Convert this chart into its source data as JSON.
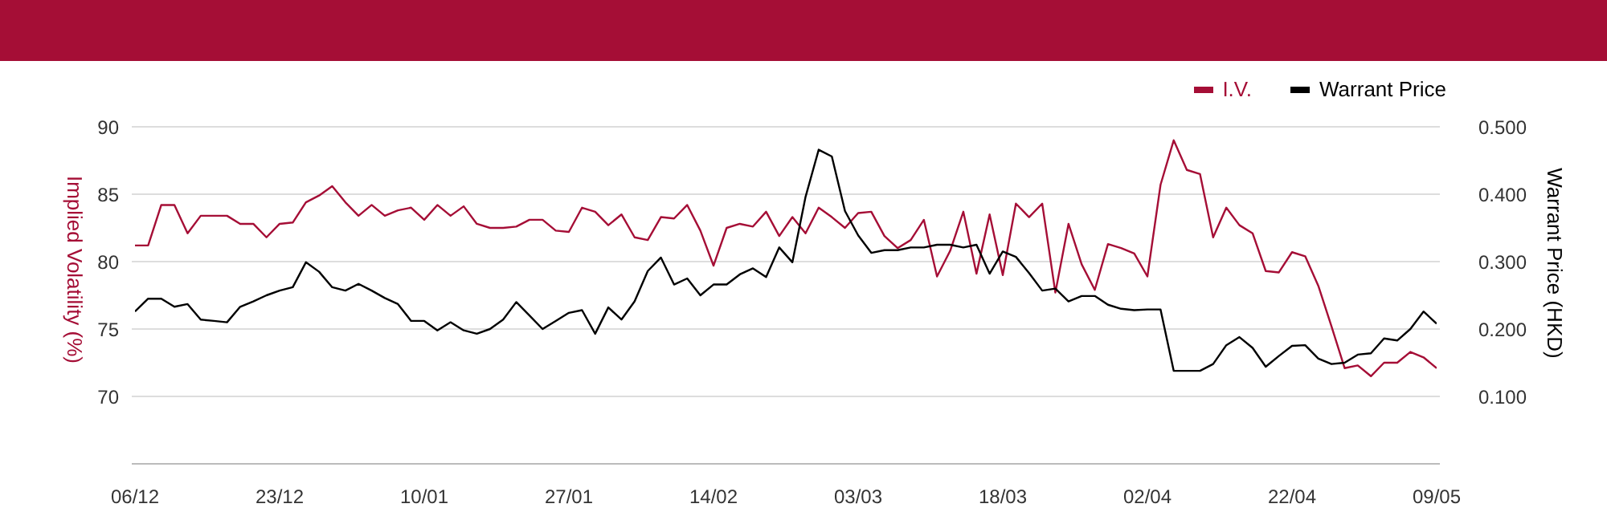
{
  "chart_data": {
    "type": "line",
    "ylabel": "Implied Volatility (%)",
    "y2label": "Warrant Price (HKD)",
    "categories": [
      "06/12",
      null,
      null,
      null,
      null,
      null,
      null,
      null,
      null,
      null,
      null,
      "23/12",
      null,
      null,
      null,
      null,
      null,
      null,
      null,
      null,
      null,
      null,
      "10/01",
      null,
      null,
      null,
      null,
      null,
      null,
      null,
      null,
      null,
      null,
      "27/01",
      null,
      null,
      null,
      null,
      null,
      null,
      null,
      null,
      null,
      null,
      "14/02",
      null,
      null,
      null,
      null,
      null,
      null,
      null,
      null,
      null,
      null,
      "03/03",
      null,
      null,
      null,
      null,
      null,
      null,
      null,
      null,
      null,
      null,
      "18/03",
      null,
      null,
      null,
      null,
      null,
      null,
      null,
      null,
      null,
      null,
      "02/04",
      null,
      null,
      null,
      null,
      null,
      null,
      null,
      null,
      null,
      null,
      "22/04",
      null,
      null,
      null,
      null,
      null,
      null,
      null,
      null,
      null,
      null,
      "09/05"
    ],
    "series": [
      {
        "name": "I.V.",
        "color": "#a50e36",
        "values": [
          81.2,
          81.2,
          84.2,
          84.2,
          82.1,
          83.4,
          83.4,
          83.4,
          82.8,
          82.8,
          81.8,
          82.8,
          82.9,
          84.4,
          84.9,
          85.6,
          84.4,
          83.4,
          84.2,
          83.4,
          83.8,
          84.0,
          83.1,
          84.2,
          83.4,
          84.1,
          82.8,
          82.5,
          82.5,
          82.6,
          83.1,
          83.1,
          82.3,
          82.2,
          84.0,
          83.7,
          82.7,
          83.5,
          81.8,
          81.6,
          83.3,
          83.2,
          84.2,
          82.3,
          79.7,
          82.5,
          82.8,
          82.6,
          83.7,
          81.9,
          83.3,
          82.1,
          84.0,
          83.3,
          82.5,
          83.6,
          83.7,
          81.9,
          81.0,
          81.6,
          83.1,
          78.9,
          80.8,
          83.7,
          79.1,
          83.5,
          79.0,
          84.3,
          83.3,
          84.3,
          77.7,
          82.8,
          79.8,
          77.9,
          81.3,
          81.0,
          80.6,
          78.9,
          85.7,
          89.0,
          86.8,
          86.5,
          81.8,
          84.0,
          82.7,
          82.1,
          79.3,
          79.2,
          80.7,
          80.4,
          78.2,
          75.2,
          72.1,
          72.3,
          71.5,
          72.5,
          72.5,
          73.3,
          72.9,
          72.1
        ]
      },
      {
        "name": "Warrant Price",
        "color": "#000000",
        "axis": "y2",
        "values": [
          0.226,
          0.245,
          0.245,
          0.233,
          0.237,
          0.214,
          0.212,
          0.21,
          0.233,
          0.241,
          0.25,
          0.257,
          0.262,
          0.299,
          0.285,
          0.262,
          0.257,
          0.267,
          0.257,
          0.246,
          0.237,
          0.212,
          0.212,
          0.198,
          0.21,
          0.198,
          0.193,
          0.2,
          0.214,
          0.24,
          0.22,
          0.2,
          0.212,
          0.224,
          0.228,
          0.193,
          0.232,
          0.214,
          0.241,
          0.286,
          0.306,
          0.266,
          0.275,
          0.25,
          0.266,
          0.266,
          0.281,
          0.29,
          0.277,
          0.321,
          0.299,
          0.396,
          0.466,
          0.456,
          0.375,
          0.339,
          0.313,
          0.317,
          0.317,
          0.321,
          0.321,
          0.325,
          0.325,
          0.321,
          0.325,
          0.282,
          0.315,
          0.307,
          0.283,
          0.257,
          0.26,
          0.241,
          0.249,
          0.249,
          0.236,
          0.23,
          0.228,
          0.229,
          0.229,
          0.138,
          0.138,
          0.138,
          0.148,
          0.176,
          0.188,
          0.172,
          0.144,
          0.16,
          0.175,
          0.176,
          0.156,
          0.148,
          0.15,
          0.162,
          0.164,
          0.186,
          0.183,
          0.2,
          0.226,
          0.208
        ]
      }
    ],
    "ylim": [
      65,
      90
    ],
    "yticks": [
      70,
      75,
      80,
      85,
      90
    ],
    "y2lim": [
      0,
      0.5
    ],
    "y2ticks": [
      {
        "value": 0.1,
        "label": "0.100"
      },
      {
        "value": 0.2,
        "label": "0.200"
      },
      {
        "value": 0.3,
        "label": "0.300"
      },
      {
        "value": 0.4,
        "label": "0.400"
      },
      {
        "value": 0.5,
        "label": "0.500"
      }
    ],
    "grid": "y",
    "legend": "top right",
    "marker": "none",
    "line_style": "solid"
  }
}
